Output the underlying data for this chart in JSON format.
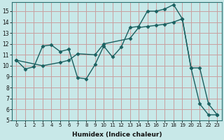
{
  "xlabel": "Humidex (Indice chaleur)",
  "bg_color": "#c8e8e8",
  "grid_color": "#c8a0a0",
  "line_color": "#1a6060",
  "marker_color": "#1a6060",
  "xlim_min": -0.5,
  "xlim_max": 23.5,
  "ylim_min": 5,
  "ylim_max": 15.8,
  "yticks": [
    5,
    6,
    7,
    8,
    9,
    10,
    11,
    12,
    13,
    14,
    15
  ],
  "xticks": [
    0,
    1,
    2,
    3,
    4,
    5,
    6,
    7,
    8,
    9,
    10,
    11,
    12,
    13,
    14,
    15,
    16,
    17,
    18,
    19,
    20,
    21,
    22,
    23
  ],
  "series1_x": [
    0,
    1,
    2,
    3,
    4,
    5,
    6,
    7,
    8,
    9,
    10,
    11,
    12,
    13,
    14,
    15,
    16,
    17,
    18,
    19,
    20,
    21,
    22,
    23
  ],
  "series1_y": [
    10.5,
    9.7,
    9.9,
    11.8,
    11.9,
    11.3,
    11.5,
    8.9,
    8.8,
    10.1,
    11.8,
    10.8,
    11.7,
    13.5,
    13.6,
    15.0,
    15.0,
    15.2,
    15.6,
    14.3,
    9.8,
    6.5,
    5.5,
    5.5
  ],
  "series2_x": [
    0,
    3,
    5,
    6,
    7,
    9,
    10,
    13,
    14,
    15,
    16,
    17,
    18,
    19,
    20,
    21,
    22,
    23
  ],
  "series2_y": [
    10.5,
    10.0,
    10.3,
    10.5,
    11.1,
    11.0,
    12.0,
    12.5,
    13.5,
    13.6,
    13.7,
    13.8,
    14.0,
    14.3,
    9.8,
    9.8,
    6.5,
    5.5
  ]
}
